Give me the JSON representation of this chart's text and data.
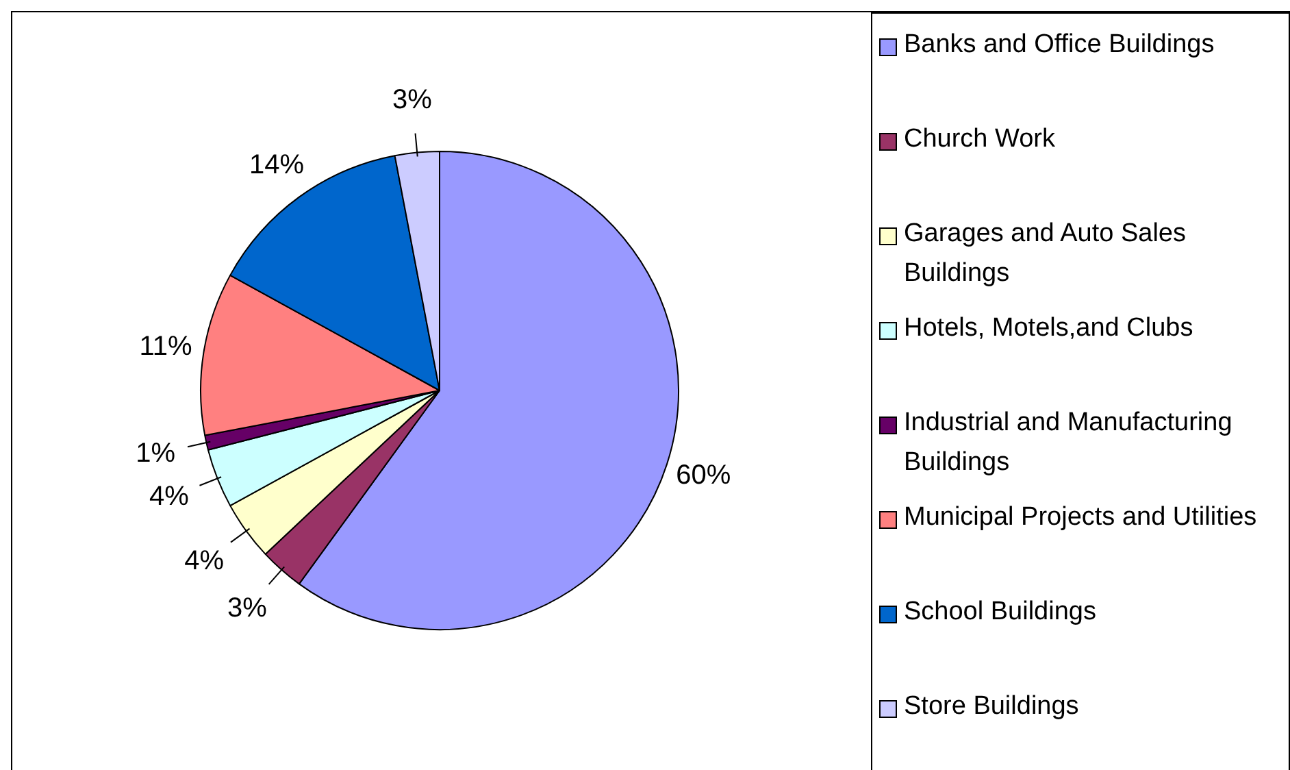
{
  "chart_data": {
    "type": "pie",
    "categories": [
      "Banks and Office Buildings",
      "Church Work",
      "Garages and Auto Sales Buildings",
      "Hotels, Motels,and Clubs",
      "Industrial and Manufacturing Buildings",
      "Municipal Projects and Utilities",
      "School Buildings",
      "Store Buildings"
    ],
    "values": [
      60,
      3,
      4,
      4,
      1,
      11,
      14,
      3
    ],
    "colors": [
      "#9999ff",
      "#993366",
      "#ffffcc",
      "#ccffff",
      "#660066",
      "#ff8080",
      "#0066cc",
      "#ccccff"
    ],
    "value_labels": [
      "60%",
      "3%",
      "4%",
      "4%",
      "1%",
      "11%",
      "14%",
      "3%"
    ],
    "legend": "right"
  }
}
